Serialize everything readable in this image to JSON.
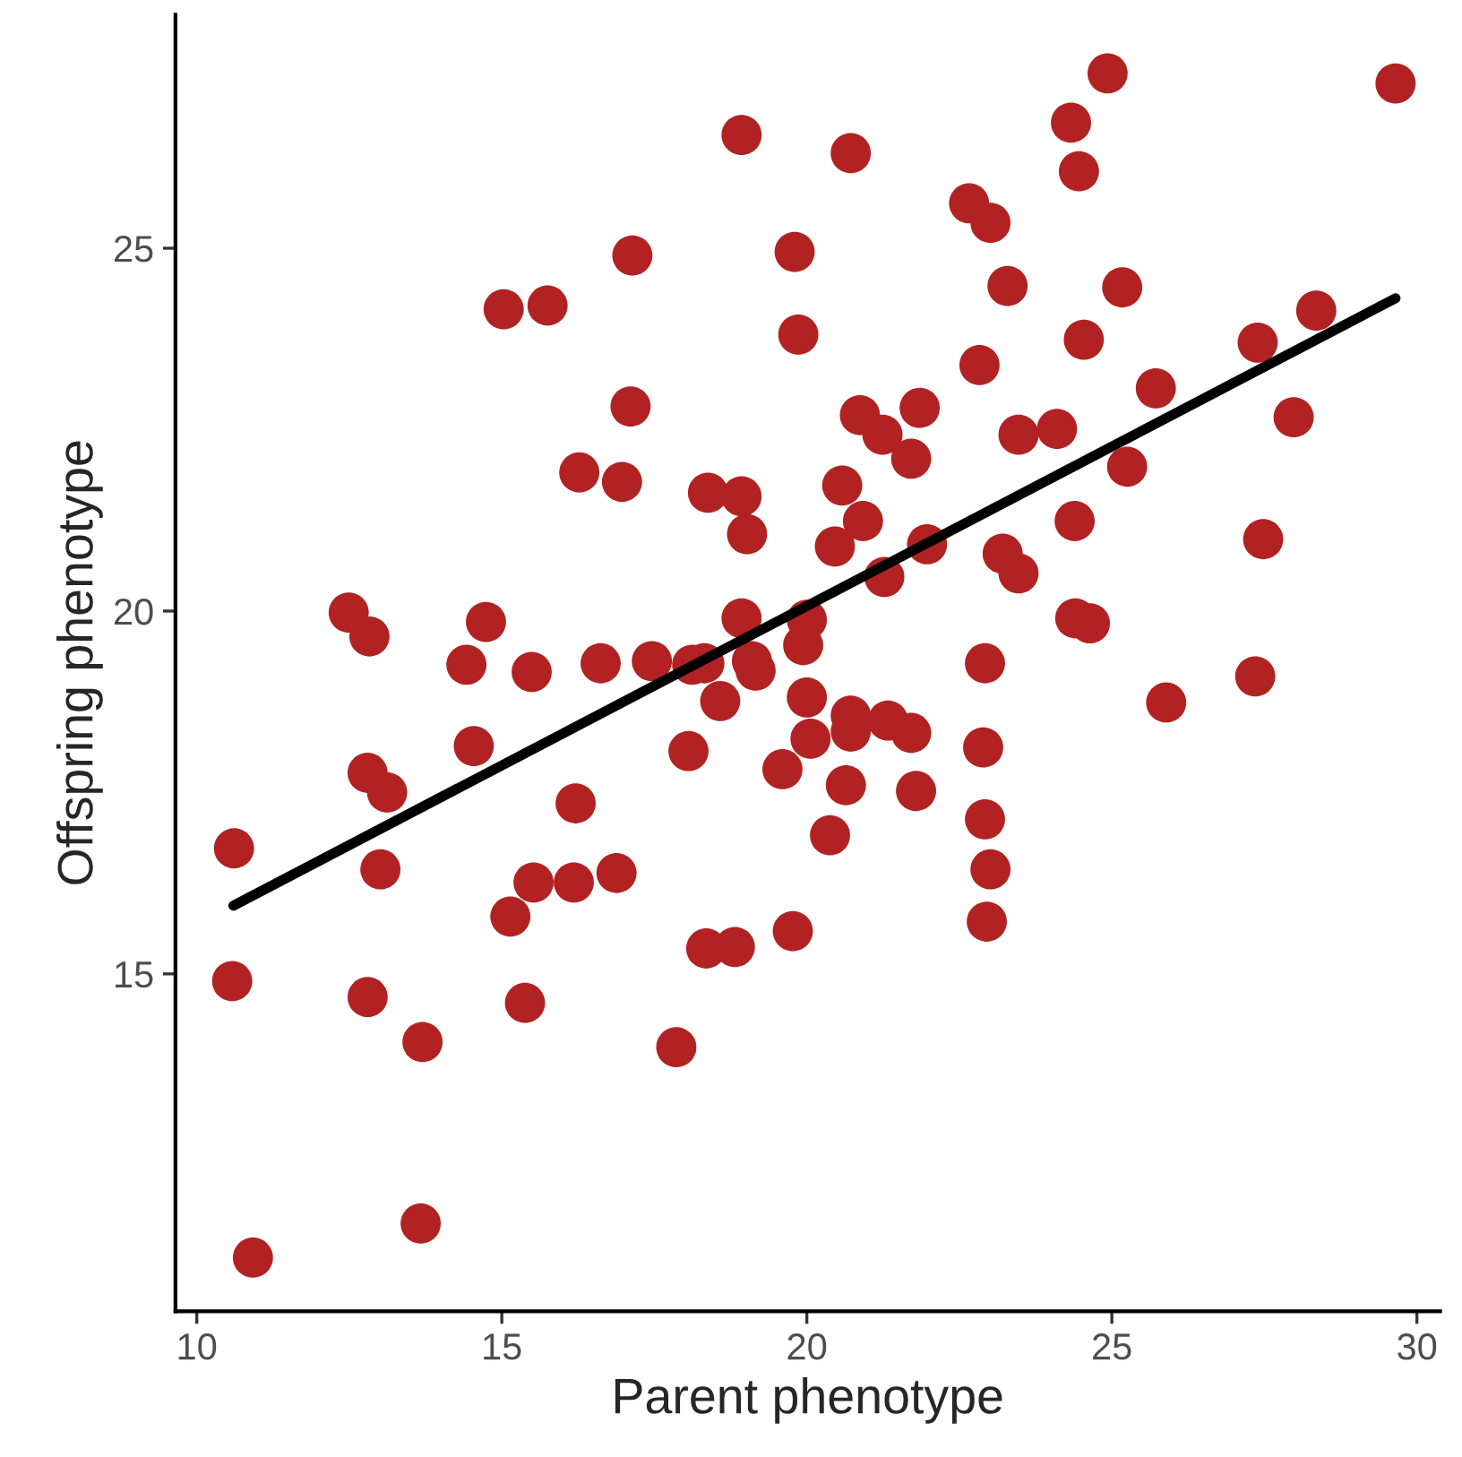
{
  "chart_data": {
    "type": "scatter",
    "xlabel": "Parent phenotype",
    "ylabel": "Offspring phenotype",
    "xlim": [
      9.65,
      30.38
    ],
    "ylim": [
      10.35,
      28.22
    ],
    "xticks": [
      10,
      15,
      20,
      25,
      30
    ],
    "yticks": [
      15,
      20,
      25
    ],
    "grid": false,
    "series": [
      {
        "color": "#b22222",
        "marker": "circle",
        "x": [
          10.61,
          10.58,
          10.92,
          12.49,
          12.83,
          12.8,
          13.12,
          13.01,
          12.8,
          13.7,
          13.67,
          14.42,
          14.74,
          14.54,
          15.03,
          15.75,
          15.14,
          15.38,
          15.52,
          15.49,
          16.21,
          16.18,
          16.27,
          16.62,
          16.88,
          16.97,
          17.11,
          17.14,
          17.46,
          17.86,
          18.06,
          18.12,
          18.32,
          18.38,
          18.35,
          18.58,
          18.82,
          18.93,
          18.93,
          19.02,
          18.93,
          19.1,
          19.16,
          19.6,
          19.77,
          19.8,
          19.86,
          19.94,
          20.0,
          20.0,
          20.06,
          20.38,
          20.46,
          20.58,
          20.64,
          20.72,
          20.72,
          20.72,
          20.87,
          20.92,
          21.24,
          21.27,
          21.33,
          21.71,
          21.71,
          21.79,
          21.85,
          21.97,
          22.66,
          22.83,
          23.01,
          22.92,
          22.89,
          22.92,
          23.01,
          22.95,
          23.29,
          23.21,
          23.47,
          23.47,
          24.1,
          24.4,
          24.64,
          25.89,
          27.35,
          25.25,
          24.39,
          27.48,
          27.98,
          25.72,
          24.54,
          27.39,
          28.35,
          25.17,
          24.33,
          24.46,
          24.93,
          29.65
        ],
        "values": [
          16.73,
          14.9,
          11.09,
          19.98,
          19.65,
          17.77,
          17.5,
          16.44,
          14.68,
          14.06,
          11.56,
          19.26,
          19.85,
          18.14,
          24.16,
          24.21,
          15.79,
          14.6,
          16.26,
          19.16,
          17.35,
          16.26,
          21.91,
          19.28,
          16.39,
          21.78,
          22.82,
          24.9,
          19.31,
          13.99,
          18.07,
          19.26,
          19.28,
          21.63,
          15.35,
          18.76,
          15.37,
          26.56,
          21.58,
          21.06,
          19.9,
          19.31,
          19.18,
          17.82,
          15.59,
          24.95,
          23.81,
          19.53,
          19.88,
          18.81,
          18.24,
          16.91,
          20.89,
          21.73,
          17.6,
          26.31,
          18.56,
          18.34,
          22.7,
          21.24,
          22.43,
          20.47,
          18.49,
          22.1,
          18.32,
          17.52,
          22.8,
          20.92,
          25.62,
          23.39,
          25.35,
          19.28,
          18.12,
          17.13,
          16.44,
          15.72,
          24.48,
          20.79,
          20.52,
          22.43,
          22.51,
          19.9,
          19.83,
          18.74,
          19.1,
          21.99,
          21.24,
          20.99,
          22.67,
          23.07,
          23.74,
          23.7,
          24.14,
          24.46,
          26.73,
          26.06,
          27.41,
          27.27
        ]
      },
      {
        "type": "line",
        "color": "#000000",
        "x": [
          10.6,
          29.65
        ],
        "values": [
          15.94,
          24.31
        ]
      }
    ]
  }
}
